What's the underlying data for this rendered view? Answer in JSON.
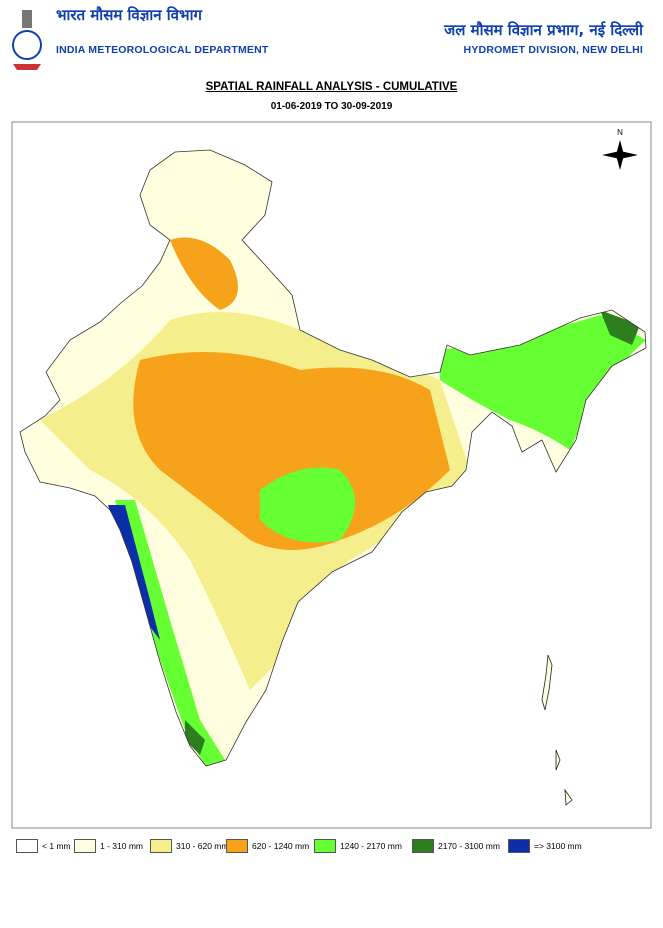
{
  "header": {
    "left_hindi": "भारत मौसम विज्ञान विभाग",
    "left_english": "INDIA METEOROLOGICAL DEPARTMENT",
    "right_hindi": "जल मौसम विज्ञान प्रभाग, नई दिल्ली",
    "right_english": "HYDROMET DIVISION, NEW DELHI"
  },
  "title": "SPATIAL RAINFALL ANALYSIS - CUMULATIVE",
  "subtitle": "01-06-2019 TO 30-09-2019",
  "compass": "N",
  "legend": [
    {
      "label": "< 1 mm",
      "color": "#ffffff"
    },
    {
      "label": "1 - 310 mm",
      "color": "#ffffe0"
    },
    {
      "label": "310 - 620 mm",
      "color": "#f5ee8c"
    },
    {
      "label": "620 - 1240 mm",
      "color": "#f7a21b"
    },
    {
      "label": "1240 - 2170 mm",
      "color": "#66ff33"
    },
    {
      "label": "2170 - 3100 mm",
      "color": "#2e7d1e"
    },
    {
      "label": "=> 3100 mm",
      "color": "#0a2fa8"
    }
  ]
}
